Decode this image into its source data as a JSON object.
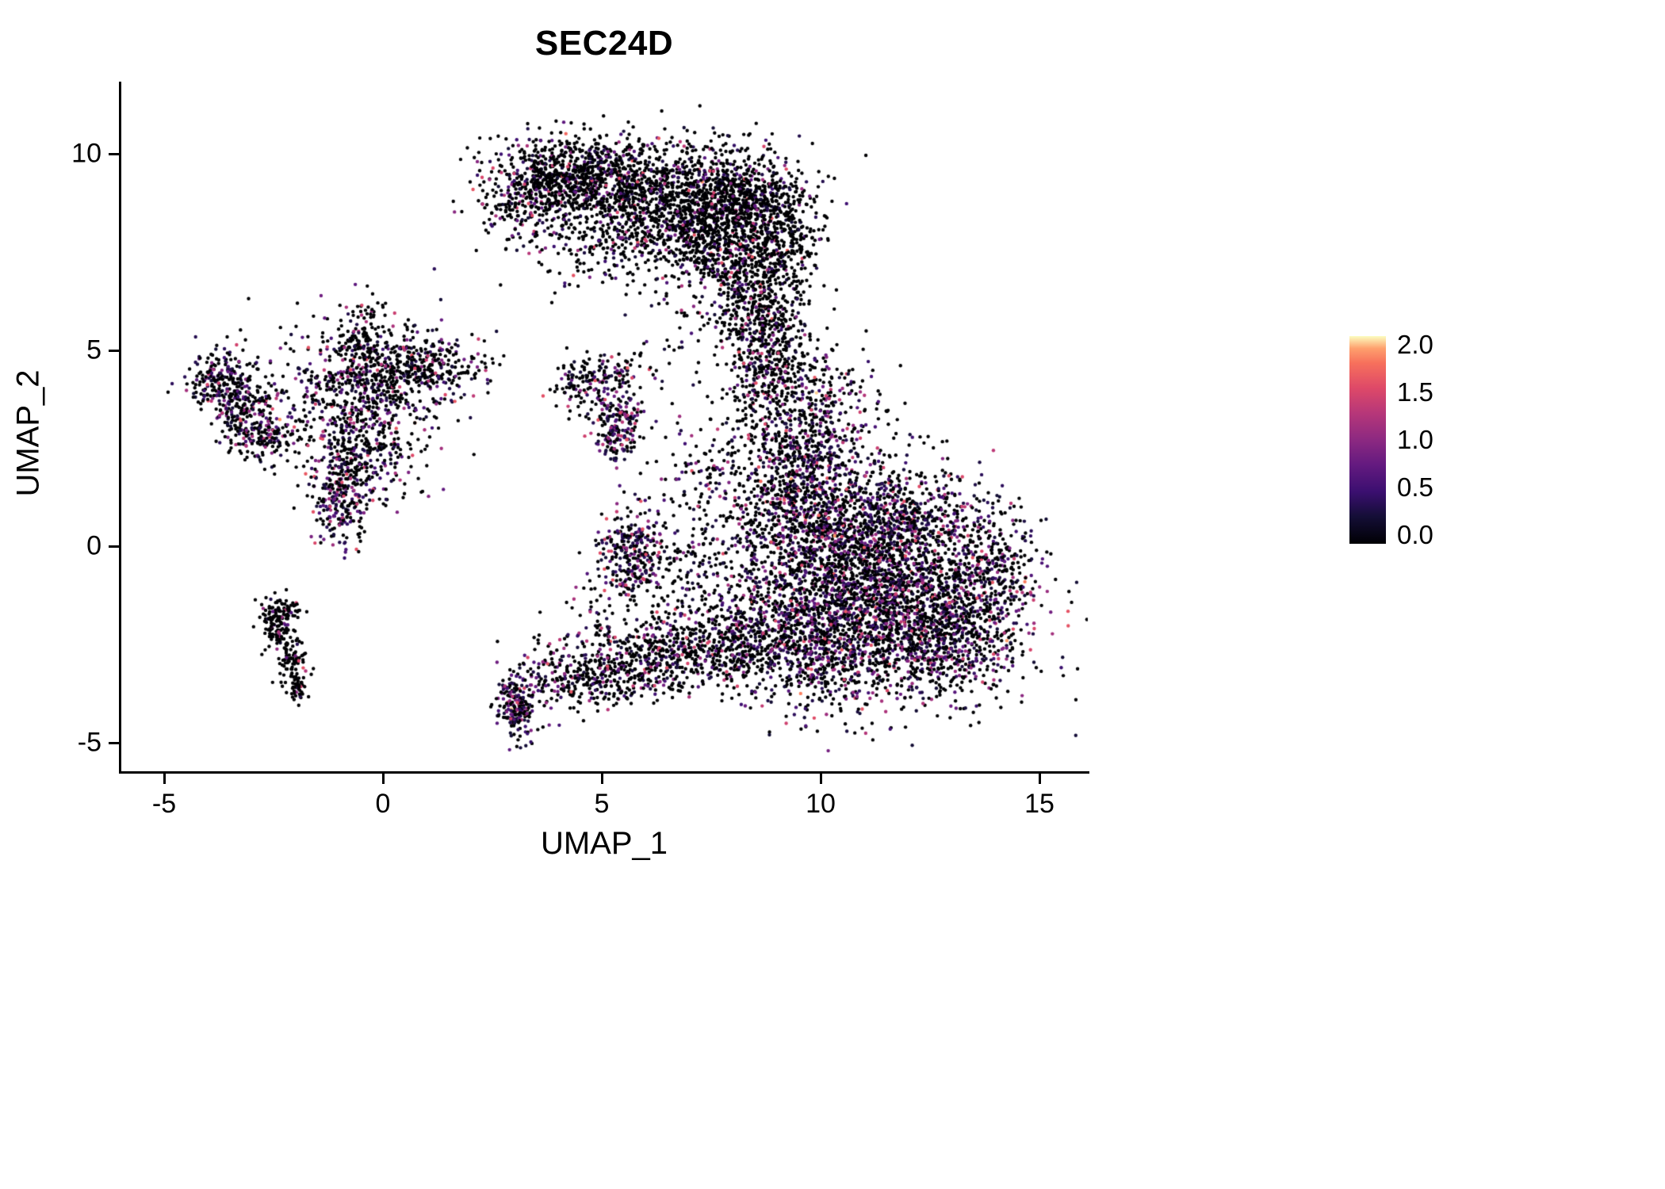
{
  "title": "SEC24D",
  "axes": {
    "x": {
      "label": "UMAP_1",
      "ticks": [
        {
          "v": -5,
          "label": "-5"
        },
        {
          "v": 0,
          "label": "0"
        },
        {
          "v": 5,
          "label": "5"
        },
        {
          "v": 10,
          "label": "10"
        },
        {
          "v": 15,
          "label": "15"
        }
      ]
    },
    "y": {
      "label": "UMAP_2",
      "ticks": [
        {
          "v": -5,
          "label": "-5"
        },
        {
          "v": 0,
          "label": "0"
        },
        {
          "v": 5,
          "label": "5"
        },
        {
          "v": 10,
          "label": "10"
        }
      ]
    }
  },
  "legend": {
    "ticks": [
      {
        "v": 2.0,
        "label": "2.0"
      },
      {
        "v": 1.5,
        "label": "1.5"
      },
      {
        "v": 1.0,
        "label": "1.0"
      },
      {
        "v": 0.5,
        "label": "0.5"
      },
      {
        "v": 0.0,
        "label": "0.0"
      }
    ],
    "colormap": [
      {
        "t": 0.0,
        "color": "#000004"
      },
      {
        "t": 0.13,
        "color": "#140e36"
      },
      {
        "t": 0.25,
        "color": "#3b0f70"
      },
      {
        "t": 0.38,
        "color": "#641a80"
      },
      {
        "t": 0.5,
        "color": "#8c2981"
      },
      {
        "t": 0.63,
        "color": "#b73779"
      },
      {
        "t": 0.75,
        "color": "#de4968"
      },
      {
        "t": 0.87,
        "color": "#f7705c"
      },
      {
        "t": 0.94,
        "color": "#fe9f6d"
      },
      {
        "t": 1.0,
        "color": "#fcfdbf"
      }
    ]
  },
  "chart_data": {
    "type": "scatter",
    "title": "SEC24D",
    "xlabel": "UMAP_1",
    "ylabel": "UMAP_2",
    "xlim": [
      -6,
      16.2
    ],
    "ylim": [
      -5.9,
      11.7
    ],
    "grid": false,
    "legend_position": "right",
    "color_scale": {
      "name": "magma",
      "domain": [
        0,
        2
      ]
    },
    "point_radius_px": 2.2,
    "clusters": [
      {
        "name": "crescent-1",
        "x": 4.2,
        "y": 9.4,
        "sx": 0.9,
        "sy": 0.5,
        "n": 650,
        "p": 0.22
      },
      {
        "name": "crescent-2",
        "x": 6.1,
        "y": 9.0,
        "sx": 1.3,
        "sy": 0.75,
        "n": 1100,
        "p": 0.22
      },
      {
        "name": "crescent-3",
        "x": 7.6,
        "y": 7.9,
        "sx": 0.9,
        "sy": 0.85,
        "n": 850,
        "p": 0.22
      },
      {
        "name": "crescent-4",
        "x": 8.3,
        "y": 8.9,
        "sx": 0.6,
        "sy": 0.5,
        "n": 400,
        "p": 0.18
      },
      {
        "name": "crescent-5",
        "x": 9.3,
        "y": 8.0,
        "sx": 0.35,
        "sy": 0.6,
        "n": 180,
        "p": 0.15
      },
      {
        "name": "crescent-arm-1",
        "x": 8.5,
        "y": 6.4,
        "sx": 0.55,
        "sy": 0.85,
        "n": 450,
        "p": 0.2
      },
      {
        "name": "crescent-arm-2",
        "x": 8.9,
        "y": 4.9,
        "sx": 0.5,
        "sy": 0.8,
        "n": 320,
        "p": 0.25
      },
      {
        "name": "crescent-tail-left",
        "x": 3.1,
        "y": 8.7,
        "sx": 0.6,
        "sy": 0.6,
        "n": 150,
        "p": 0.3
      },
      {
        "name": "crescent-interior-sparse",
        "x": 5.0,
        "y": 7.7,
        "sx": 0.9,
        "sy": 0.6,
        "n": 130,
        "p": 0.2
      },
      {
        "name": "right-blob-core",
        "x": 11.2,
        "y": -1.3,
        "sx": 1.6,
        "sy": 1.2,
        "n": 2300,
        "p": 0.42
      },
      {
        "name": "right-blob-upper",
        "x": 10.2,
        "y": 0.7,
        "sx": 1.0,
        "sy": 1.0,
        "n": 800,
        "p": 0.4
      },
      {
        "name": "right-blob-lower-right",
        "x": 12.7,
        "y": -2.3,
        "sx": 1.0,
        "sy": 0.8,
        "n": 650,
        "p": 0.42
      },
      {
        "name": "right-blob-lower-left",
        "x": 9.7,
        "y": -2.7,
        "sx": 0.8,
        "sy": 0.8,
        "n": 480,
        "p": 0.4
      },
      {
        "name": "right-blob-arm-up",
        "x": 10.0,
        "y": 2.9,
        "sx": 0.7,
        "sy": 1.0,
        "n": 420,
        "p": 0.38
      },
      {
        "name": "right-blob-neck",
        "x": 9.3,
        "y": 1.4,
        "sx": 0.5,
        "sy": 1.0,
        "n": 300,
        "p": 0.35
      },
      {
        "name": "right-blob-east",
        "x": 13.9,
        "y": -0.6,
        "sx": 0.5,
        "sy": 0.9,
        "n": 260,
        "p": 0.4
      },
      {
        "name": "right-blob-mid",
        "x": 12.2,
        "y": 0.6,
        "sx": 0.8,
        "sy": 0.7,
        "n": 400,
        "p": 0.4
      },
      {
        "name": "bottom-band-1",
        "x": 3.05,
        "y": -4.15,
        "sx": 0.22,
        "sy": 0.35,
        "n": 190,
        "p": 0.45
      },
      {
        "name": "bottom-band-2",
        "x": 4.3,
        "y": -3.4,
        "sx": 0.7,
        "sy": 0.45,
        "n": 240,
        "p": 0.3
      },
      {
        "name": "bottom-band-3",
        "x": 5.6,
        "y": -3.0,
        "sx": 0.8,
        "sy": 0.5,
        "n": 330,
        "p": 0.3
      },
      {
        "name": "bottom-band-4",
        "x": 7.0,
        "y": -2.7,
        "sx": 0.8,
        "sy": 0.5,
        "n": 290,
        "p": 0.32
      },
      {
        "name": "bottom-band-5",
        "x": 8.2,
        "y": -2.4,
        "sx": 0.6,
        "sy": 0.5,
        "n": 240,
        "p": 0.35
      },
      {
        "name": "center-small-dense",
        "x": 5.7,
        "y": -0.1,
        "sx": 0.4,
        "sy": 0.55,
        "n": 270,
        "p": 0.55
      },
      {
        "name": "center-small-sparse",
        "x": 6.7,
        "y": -0.8,
        "sx": 0.6,
        "sy": 0.7,
        "n": 110,
        "p": 0.25
      },
      {
        "name": "mid-upper-dense",
        "x": 5.35,
        "y": 3.05,
        "sx": 0.28,
        "sy": 0.5,
        "n": 210,
        "p": 0.6
      },
      {
        "name": "mid-upper-arm",
        "x": 5.0,
        "y": 4.35,
        "sx": 0.5,
        "sy": 0.28,
        "n": 110,
        "p": 0.3
      },
      {
        "name": "mid-upper-west",
        "x": 4.45,
        "y": 3.95,
        "sx": 0.3,
        "sy": 0.3,
        "n": 60,
        "p": 0.25
      },
      {
        "name": "left-mid-core",
        "x": -0.6,
        "y": 3.9,
        "sx": 1.0,
        "sy": 0.9,
        "n": 560,
        "p": 0.35
      },
      {
        "name": "left-mid-lower",
        "x": -0.5,
        "y": 2.4,
        "sx": 0.6,
        "sy": 0.6,
        "n": 280,
        "p": 0.35
      },
      {
        "name": "left-mid-strip",
        "x": -0.95,
        "y": 1.2,
        "sx": 0.35,
        "sy": 0.65,
        "n": 240,
        "p": 0.6
      },
      {
        "name": "left-mid-upper-right",
        "x": 0.3,
        "y": 4.5,
        "sx": 0.7,
        "sy": 0.45,
        "n": 230,
        "p": 0.35
      },
      {
        "name": "left-mid-spike",
        "x": -0.45,
        "y": 5.3,
        "sx": 0.28,
        "sy": 0.45,
        "n": 110,
        "p": 0.2
      },
      {
        "name": "left-mid-east",
        "x": 1.2,
        "y": 4.5,
        "sx": 0.5,
        "sy": 0.3,
        "n": 110,
        "p": 0.3
      },
      {
        "name": "left-mid-east-sparse",
        "x": 2.0,
        "y": 4.6,
        "sx": 0.4,
        "sy": 0.25,
        "n": 30,
        "p": 0.3
      },
      {
        "name": "far-left-upper",
        "x": -3.6,
        "y": 4.2,
        "sx": 0.45,
        "sy": 0.4,
        "n": 240,
        "p": 0.4
      },
      {
        "name": "far-left-mid",
        "x": -3.1,
        "y": 3.2,
        "sx": 0.4,
        "sy": 0.5,
        "n": 210,
        "p": 0.45
      },
      {
        "name": "far-left-lower",
        "x": -2.55,
        "y": 2.7,
        "sx": 0.3,
        "sy": 0.25,
        "n": 90,
        "p": 0.3
      },
      {
        "name": "bottom-left-line-1",
        "x": -2.5,
        "y": -2.0,
        "sx": 0.18,
        "sy": 0.35,
        "n": 110,
        "p": 0.08
      },
      {
        "name": "bottom-left-line-2",
        "x": -2.1,
        "y": -2.9,
        "sx": 0.15,
        "sy": 0.35,
        "n": 90,
        "p": 0.08
      },
      {
        "name": "bottom-left-tail",
        "x": -1.95,
        "y": -3.6,
        "sx": 0.1,
        "sy": 0.2,
        "n": 40,
        "p": 0.05
      },
      {
        "name": "bottom-left-branch",
        "x": -2.2,
        "y": -1.65,
        "sx": 0.22,
        "sy": 0.15,
        "n": 50,
        "p": 0.1
      },
      {
        "name": "connector-1",
        "x": 7.6,
        "y": 0.4,
        "sx": 0.8,
        "sy": 1.1,
        "n": 140,
        "p": 0.25
      },
      {
        "name": "connector-2",
        "x": 7.4,
        "y": 2.0,
        "sx": 0.6,
        "sy": 0.5,
        "n": 80,
        "p": 0.2
      },
      {
        "name": "connector-3",
        "x": 8.6,
        "y": 3.6,
        "sx": 0.5,
        "sy": 0.7,
        "n": 120,
        "p": 0.25
      },
      {
        "name": "connector-4",
        "x": 6.8,
        "y": 4.6,
        "sx": 0.9,
        "sy": 0.8,
        "n": 35,
        "p": 0.2
      },
      {
        "name": "connector-5",
        "x": 5.3,
        "y": -1.6,
        "sx": 0.5,
        "sy": 0.6,
        "n": 60,
        "p": 0.3
      }
    ]
  }
}
